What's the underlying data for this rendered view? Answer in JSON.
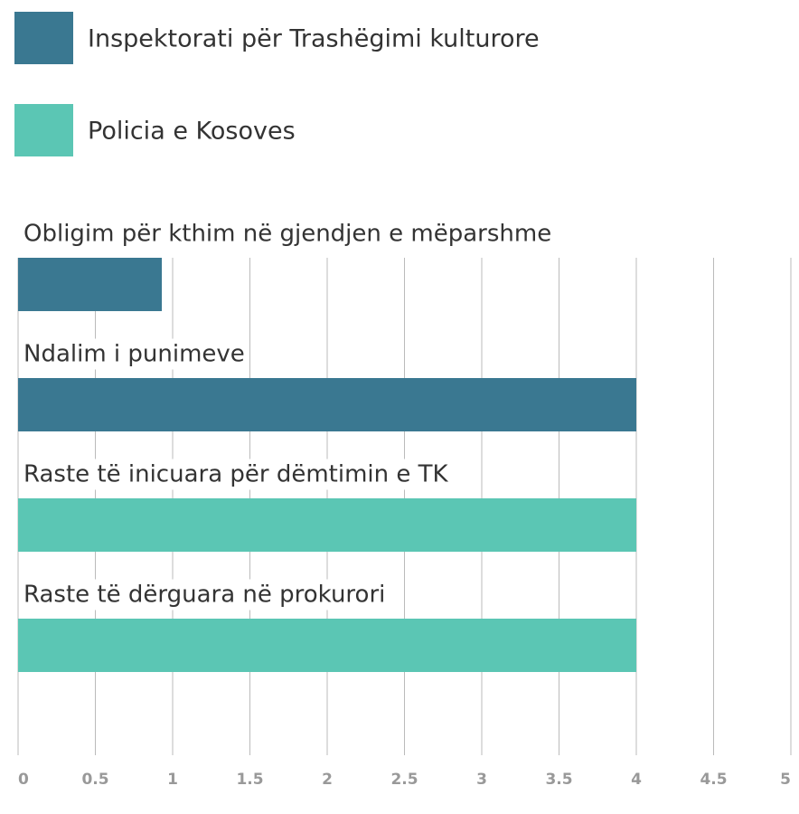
{
  "chart_data": {
    "type": "bar",
    "categories": [
      "Obligim për kthim në gjendjen e mëparshme",
      "Ndalim i punimeve",
      "Raste të inicuara për dëmtimin e TK",
      "Raste të dërguara në prokurori"
    ],
    "series": [
      {
        "name": "Inspektorati për Trashëgimi kulturore",
        "color": "#3a7891",
        "values": [
          0.93,
          4,
          null,
          null
        ]
      },
      {
        "name": "Policia e Kosoves",
        "color": "#5bc6b4",
        "values": [
          null,
          null,
          4,
          4
        ]
      }
    ],
    "xlim": [
      0,
      5
    ],
    "xticks": [
      0,
      0.5,
      1,
      1.5,
      2,
      2.5,
      3,
      3.5,
      4,
      4.5,
      5
    ],
    "grid": true
  }
}
